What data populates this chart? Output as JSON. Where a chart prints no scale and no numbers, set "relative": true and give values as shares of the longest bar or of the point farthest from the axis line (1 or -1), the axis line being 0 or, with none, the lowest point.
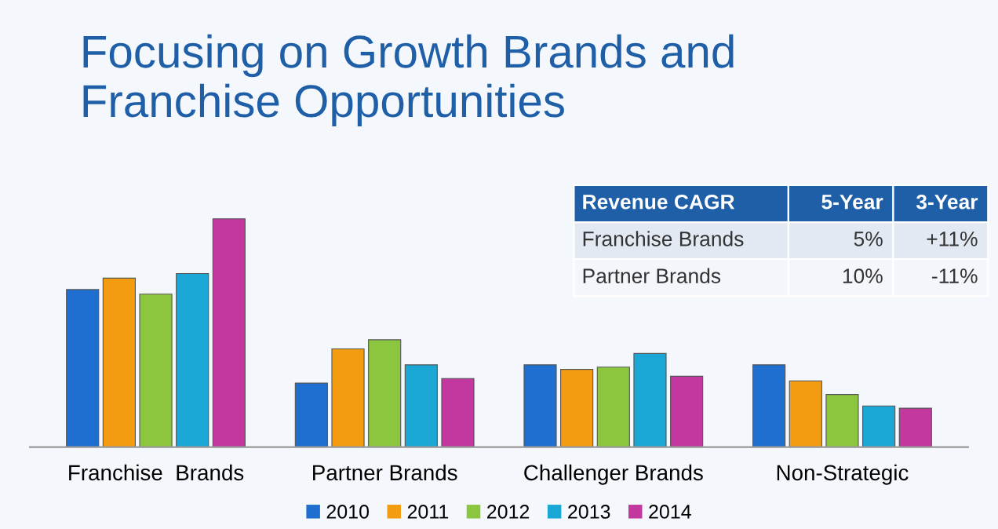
{
  "chart_data": {
    "type": "bar",
    "title": "Focusing on Growth Brands and\nFranchise Opportunities",
    "relative": true,
    "legend": "bottom",
    "grid": false,
    "categories": [
      "Franchise  Brands",
      "Partner Brands",
      "Challenger Brands",
      "Non-Strategic"
    ],
    "series": [
      {
        "name": "2010",
        "color": "#1f6fd0",
        "values": [
          0.69,
          0.28,
          0.36,
          0.36
        ]
      },
      {
        "name": "2011",
        "color": "#f39c12",
        "values": [
          0.74,
          0.43,
          0.34,
          0.29
        ]
      },
      {
        "name": "2012",
        "color": "#8cc63f",
        "values": [
          0.67,
          0.47,
          0.35,
          0.23
        ]
      },
      {
        "name": "2013",
        "color": "#1aa7d6",
        "values": [
          0.76,
          0.36,
          0.41,
          0.18
        ]
      },
      {
        "name": "2014",
        "color": "#c2389e",
        "values": [
          1,
          0.3,
          0.31,
          0.17
        ]
      }
    ],
    "annotations": [
      "Revenue CAGR",
      "5-Year",
      "3-Year",
      "Franchise Brands",
      "5%",
      "+11%",
      "Partner Brands",
      "10%",
      "-11%"
    ]
  }
}
